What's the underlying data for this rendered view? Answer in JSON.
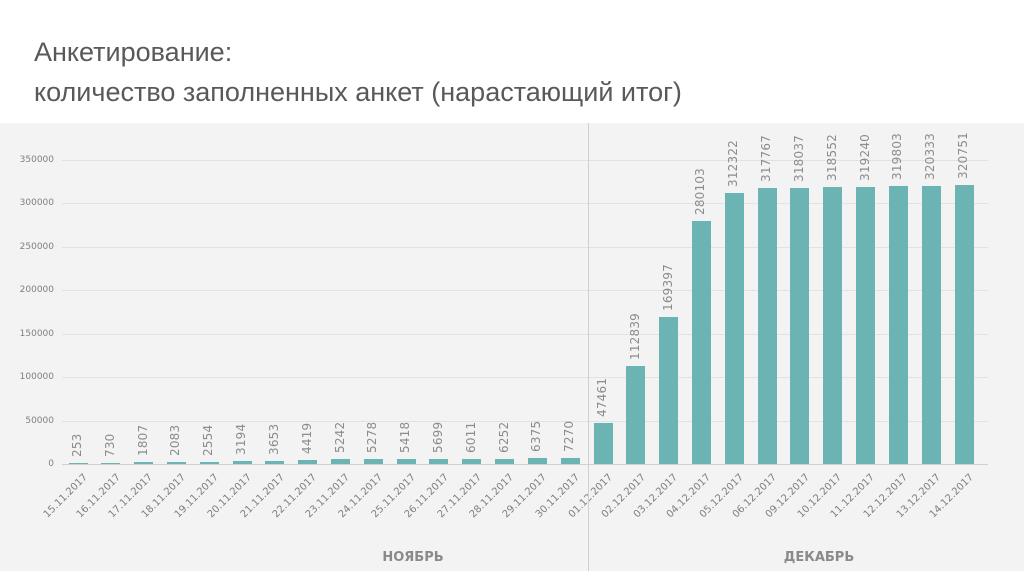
{
  "title": {
    "line1": "Анкетирование:",
    "line2": "количество заполненных анкет (нарастающий итог)"
  },
  "chart_data": {
    "type": "bar",
    "title": "Анкетирование: количество заполненных анкет (нарастающий итог)",
    "xlabel": "",
    "ylabel": "",
    "ylim": [
      0,
      350000
    ],
    "yticks": [
      0,
      50000,
      100000,
      150000,
      200000,
      250000,
      300000,
      350000
    ],
    "grid": true,
    "bar_color": "#6cb3b3",
    "categories": [
      "15.11.2017",
      "16.11.2017",
      "17.11.2017",
      "18.11.2017",
      "19.11.2017",
      "20.11.2017",
      "21.11.2017",
      "22.11.2017",
      "23.11.2017",
      "24.11.2017",
      "25.11.2017",
      "26.11.2017",
      "27.11.2017",
      "28.11.2017",
      "29.11.2017",
      "30.11.2017",
      "01.12.2017",
      "02.12.2017",
      "03.12.2017",
      "04.12.2017",
      "05.12.2017",
      "06.12.2017",
      "09.12.2017",
      "10.12.2017",
      "11.12.2017",
      "12.12.2017",
      "13.12.2017",
      "14.12.2017"
    ],
    "values": [
      253,
      730,
      1807,
      2083,
      2554,
      3194,
      3653,
      4419,
      5242,
      5278,
      5418,
      5699,
      6011,
      6252,
      6375,
      7270,
      47461,
      112839,
      169397,
      280103,
      312322,
      317767,
      318037,
      318552,
      319240,
      319803,
      320333,
      320751
    ],
    "groups": [
      {
        "label": "НОЯБРЬ",
        "from": "15.11.2017",
        "to": "30.11.2017"
      },
      {
        "label": "ДЕКАБРЬ",
        "from": "01.12.2017",
        "to": "14.12.2017"
      }
    ]
  }
}
